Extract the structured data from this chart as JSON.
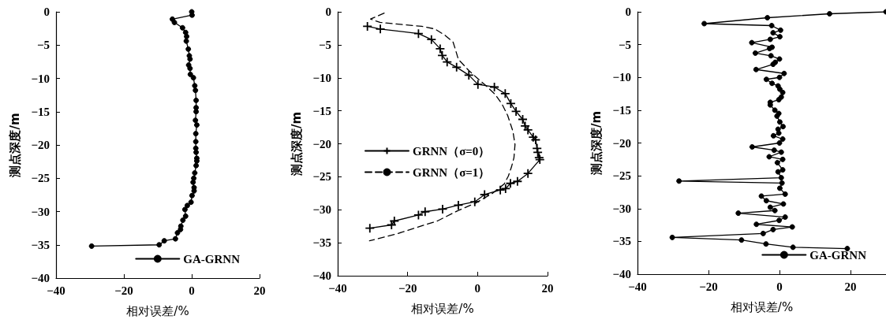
{
  "chart_data": [
    {
      "type": "line",
      "xlabel": "相对误差/%",
      "ylabel": "测点深度/m",
      "xlim": [
        -40,
        20
      ],
      "xticks": [
        -40,
        -20,
        0,
        20
      ],
      "ylim": [
        -40,
        0
      ],
      "yticks": [
        0,
        -5,
        -10,
        -15,
        -20,
        -25,
        -30,
        -35,
        -40
      ],
      "grid": false,
      "legend": "bottom right",
      "marker": "circle",
      "line_style": "solid",
      "series": [
        {
          "name": "GA-GRNN",
          "color": "#000000",
          "x": [
            0,
            0.1,
            -5.7,
            -5.1,
            -2.7,
            -1.8,
            -1.5,
            -1.6,
            -1,
            -0.7,
            -0.5,
            -0.9,
            -0.5,
            -0.4,
            0.5,
            0.9,
            1.1,
            1.3,
            1.3,
            1.3,
            1.1,
            1.5,
            1.2,
            1.2,
            1.2,
            1.3,
            1.5,
            1.5,
            1.3,
            0.9,
            0.6,
            0.4,
            0.7,
            0.7,
            0.1,
            -0.2,
            -1.3,
            -2,
            -1.8,
            -2.6,
            -3.2,
            -3.3,
            -4.2,
            -4.8,
            -8.1,
            -9.6,
            -29.5
          ],
          "values": [
            0,
            -0.5,
            -1.1,
            -1.6,
            -2.4,
            -3.1,
            -3.7,
            -4.4,
            -5.6,
            -6.6,
            -7.1,
            -8,
            -8.5,
            -9.4,
            -9.9,
            -11.1,
            -11.8,
            -13.3,
            -14.4,
            -15,
            -16.3,
            -17,
            -18.3,
            -19.5,
            -20.5,
            -21.1,
            -22,
            -22.4,
            -23.1,
            -24.2,
            -25,
            -25.6,
            -26.4,
            -26.9,
            -27.6,
            -28.6,
            -29.1,
            -29.7,
            -30.7,
            -31.3,
            -32.2,
            -32.7,
            -33.2,
            -34.1,
            -34.4,
            -35,
            -35.2
          ]
        }
      ]
    },
    {
      "type": "line",
      "xlabel": "相对误差/%",
      "ylabel": "测点深度/m",
      "xlim": [
        -40,
        20
      ],
      "xticks": [
        -40,
        -20,
        0,
        20
      ],
      "ylim": [
        -40,
        0
      ],
      "yticks": [
        0,
        -5,
        -10,
        -15,
        -20,
        -25,
        -30,
        -35,
        -40
      ],
      "grid": false,
      "legend": "left",
      "marker": "cross",
      "line_style": "solid",
      "series": [
        {
          "name": "GRNN（σ=0）",
          "color": "#000000",
          "x": [
            -31.5,
            -27.8,
            -16.9,
            -13.2,
            -10.7,
            -10.1,
            -8.7,
            -6,
            -2.5,
            0.1,
            4.8,
            7.9,
            9.5,
            11,
            12.9,
            13.6,
            14.4,
            15.9,
            16.6,
            17,
            17.2,
            17.6,
            17.8,
            14.4,
            11.4,
            9.4,
            8,
            6.5,
            2,
            -0.8,
            -5.5,
            -10,
            -15,
            -16.9,
            -23.8,
            -24.6,
            -30.8
          ],
          "values": [
            -2.2,
            -2.6,
            -3.3,
            -4.2,
            -5.6,
            -6.6,
            -7.6,
            -8.4,
            -9.6,
            -11,
            -11.4,
            -12.4,
            -13.9,
            -15.1,
            -16.3,
            -17.3,
            -17.9,
            -19,
            -19.4,
            -20.7,
            -21.3,
            -22.1,
            -22.4,
            -24.5,
            -25.7,
            -26,
            -26.8,
            -27,
            -27.7,
            -28.8,
            -29.3,
            -29.9,
            -30.3,
            -30.8,
            -31.7,
            -32.3,
            -32.8
          ]
        },
        {
          "name": "GRNN（σ=1）",
          "color": "#000000",
          "marker": "none",
          "line_style": "dashed",
          "x": [
            -26.7,
            -30.6,
            -27.9,
            -16,
            -12.2,
            -9.2,
            -7,
            -6.4,
            -5.5,
            -2.5,
            -0.2,
            2.4,
            5,
            6.9,
            8.6,
            10.1,
            10.7,
            10.4,
            9.7,
            8.8,
            7.6,
            4.3,
            -0.6,
            -5.5,
            -11.5,
            -17.5,
            -23.4,
            -30.9
          ],
          "values": [
            -0.2,
            -1.1,
            -1.6,
            -2.2,
            -2.6,
            -3.6,
            -4.6,
            -5.6,
            -7.2,
            -8.9,
            -10,
            -11.2,
            -12.5,
            -13.9,
            -15.7,
            -18.1,
            -20.1,
            -22.1,
            -23.5,
            -24.9,
            -26.1,
            -27.5,
            -29,
            -30.1,
            -31.7,
            -32.7,
            -33.7,
            -34.7
          ]
        }
      ]
    },
    {
      "type": "line",
      "xlabel": "相对误差/%",
      "ylabel": "测点深度/m",
      "xlim": [
        -40,
        30
      ],
      "xticks": [
        -40,
        -20,
        0,
        20
      ],
      "ylim": [
        -40,
        0
      ],
      "yticks": [
        0,
        -5,
        -10,
        -15,
        -20,
        -25,
        -30,
        -35,
        -40
      ],
      "grid": false,
      "legend": "bottom right",
      "marker": "circle",
      "line_style": "solid",
      "series": [
        {
          "name": "GA-GRNN",
          "color": "#000000",
          "x": [
            30,
            14.1,
            -3.4,
            -21.2,
            -2.2,
            0.3,
            -1.8,
            0.1,
            -2.6,
            -7.8,
            -2.1,
            -2.8,
            -6.8,
            -2.4,
            0,
            -1.2,
            -1.8,
            -6.6,
            1.3,
            0,
            -3.7,
            -2.1,
            -0.4,
            0.1,
            0.9,
            0.5,
            -0.2,
            -2.6,
            -2.6,
            -1.3,
            -0.2,
            -0.7,
            0.1,
            1,
            -0.4,
            -0.2,
            -1.7,
            0.9,
            0,
            -7.7,
            -1.5,
            0.5,
            -2.9,
            0.9,
            -0.6,
            0.9,
            -0.4,
            0.5,
            -28.3,
            0.7,
            0.1,
            1.6,
            -5.1,
            -3.7,
            1.1,
            -2.6,
            -1.3,
            -11.6,
            1.6,
            -0.1,
            -6.5,
            3.6,
            -1.8,
            -4.6,
            -30.2,
            -10.7,
            -3.8,
            3.8,
            19.1
          ],
          "values": [
            0,
            -0.3,
            -0.9,
            -1.8,
            -2.1,
            -2.8,
            -3.2,
            -3.8,
            -4.2,
            -4.7,
            -5.4,
            -5.6,
            -6.3,
            -6.7,
            -7.2,
            -7.7,
            -8,
            -8.8,
            -9.4,
            -10,
            -10.3,
            -10.9,
            -11.3,
            -11.8,
            -12.3,
            -13,
            -13.4,
            -13.8,
            -14.2,
            -15,
            -15.5,
            -15.9,
            -16.8,
            -17.5,
            -17.9,
            -18.5,
            -18.9,
            -19.4,
            -20,
            -20.6,
            -21.1,
            -21.4,
            -22.1,
            -22.5,
            -23,
            -24.1,
            -24.4,
            -25.3,
            -25.8,
            -26.1,
            -26.9,
            -27.8,
            -28.1,
            -28.8,
            -29.3,
            -29.8,
            -30.3,
            -30.7,
            -31.3,
            -31.8,
            -32.4,
            -32.8,
            -33.2,
            -33.8,
            -34.4,
            -34.8,
            -35.4,
            -35.9,
            -36.1
          ]
        }
      ]
    }
  ]
}
